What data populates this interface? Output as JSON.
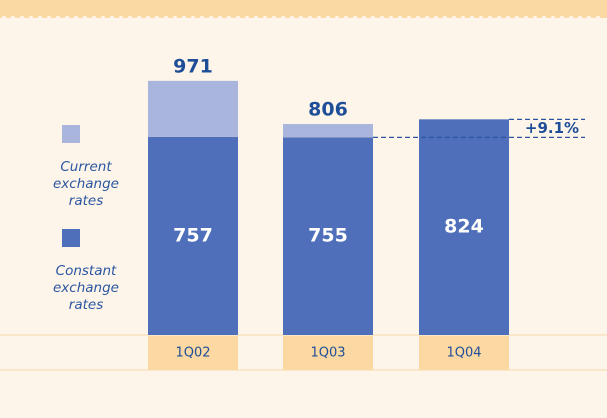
{
  "chart_data": {
    "type": "stacked_bar",
    "categories": [
      "1Q02",
      "1Q03",
      "1Q04"
    ],
    "series": [
      {
        "name": "Constant exchange rates",
        "color": "#4f6fba",
        "values": [
          757,
          755,
          824
        ]
      },
      {
        "name": "Current exchange rates",
        "color": "#a9b5dc",
        "values": [
          214,
          51,
          null
        ]
      }
    ],
    "totals": [
      971,
      806,
      null
    ],
    "annotation": "+9.1%",
    "ylim": [
      0,
      1280
    ]
  }
}
